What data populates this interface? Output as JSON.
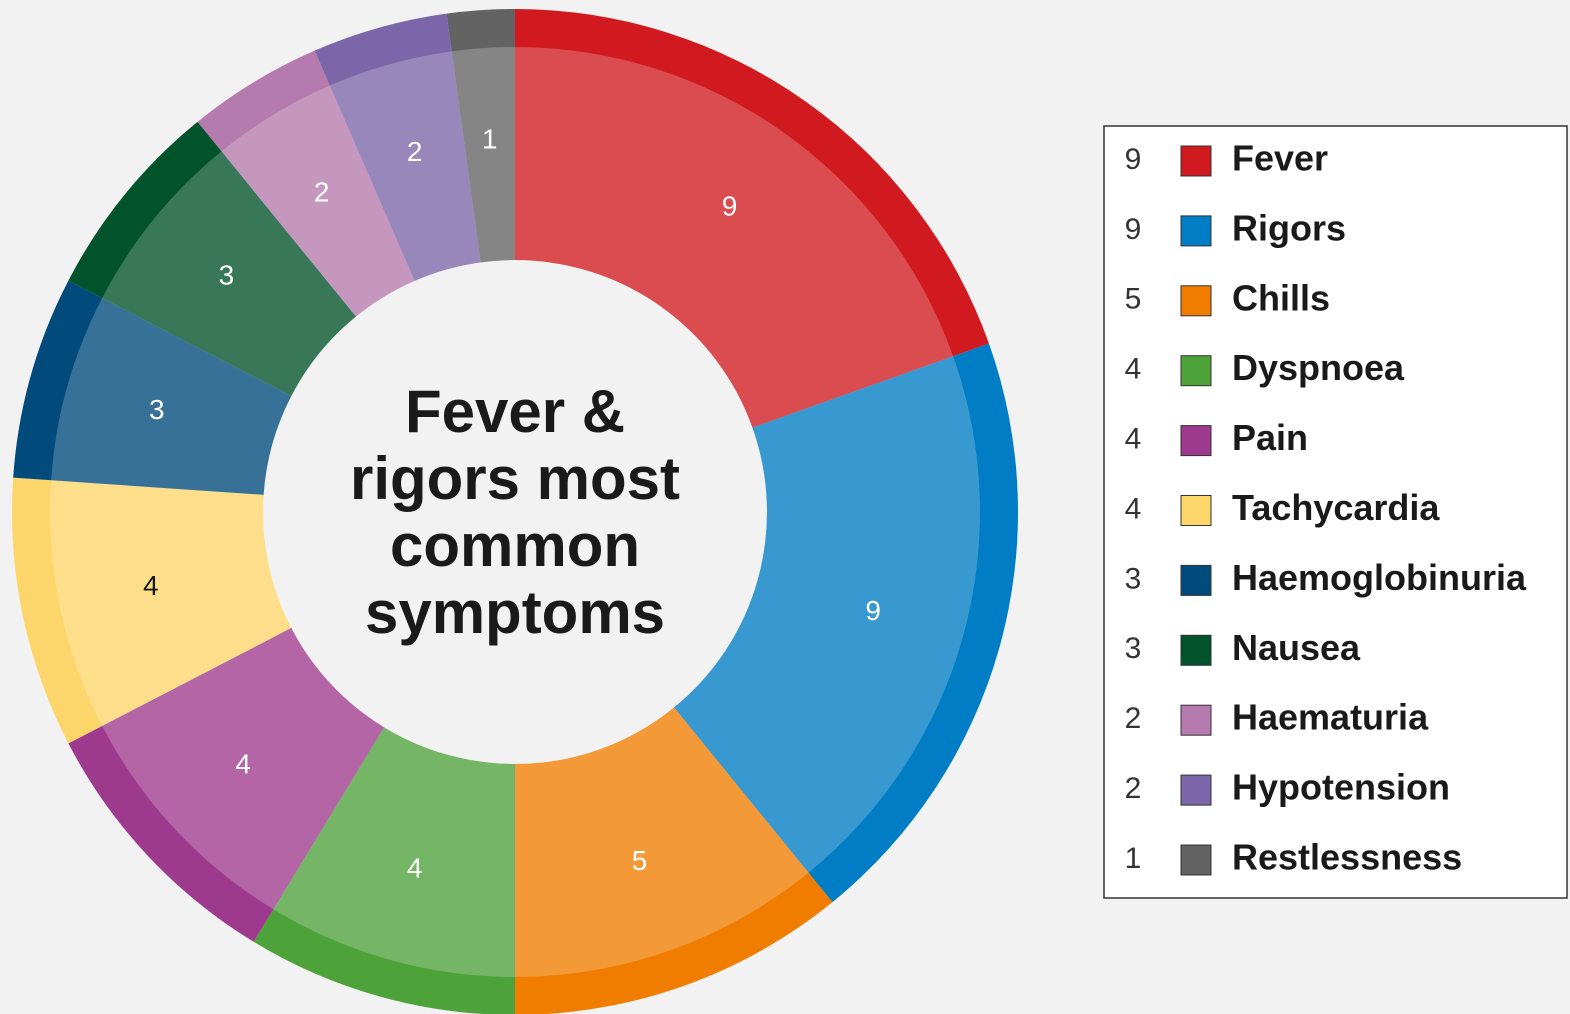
{
  "chart_data": {
    "type": "pie",
    "title": "Fever & rigors most common symptoms",
    "categories": [
      "Fever",
      "Rigors",
      "Chills",
      "Dyspnoea",
      "Pain",
      "Tachycardia",
      "Haemoglobinuria",
      "Nausea",
      "Haematuria",
      "Hypotension",
      "Restlessness"
    ],
    "values": [
      9,
      9,
      5,
      4,
      4,
      4,
      3,
      3,
      2,
      2,
      1
    ],
    "colors": [
      "#d11a1f",
      "#007dc5",
      "#f07d00",
      "#4ea23a",
      "#9e3a8e",
      "#fdd66b",
      "#004a7c",
      "#00532a",
      "#b57aae",
      "#7a66a8",
      "#636363"
    ],
    "legend": "right"
  }
}
